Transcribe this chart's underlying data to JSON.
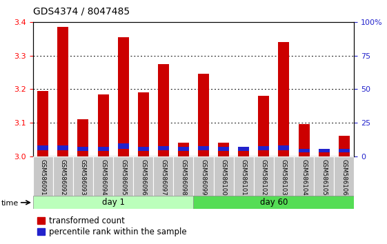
{
  "title": "GDS4374 / 8047485",
  "samples": [
    "GSM586091",
    "GSM586092",
    "GSM586093",
    "GSM586094",
    "GSM586095",
    "GSM586096",
    "GSM586097",
    "GSM586098",
    "GSM586099",
    "GSM586100",
    "GSM586101",
    "GSM586102",
    "GSM586103",
    "GSM586104",
    "GSM586105",
    "GSM586106"
  ],
  "red_values": [
    3.195,
    3.385,
    3.11,
    3.185,
    3.355,
    3.19,
    3.275,
    3.04,
    3.245,
    3.04,
    3.025,
    3.18,
    3.34,
    3.095,
    3.02,
    3.06
  ],
  "blue_bottom": [
    3.018,
    3.018,
    3.016,
    3.016,
    3.022,
    3.016,
    3.018,
    3.016,
    3.018,
    3.016,
    3.016,
    3.018,
    3.018,
    3.012,
    3.012,
    3.012
  ],
  "blue_top": [
    3.032,
    3.032,
    3.028,
    3.028,
    3.038,
    3.028,
    3.03,
    3.028,
    3.03,
    3.028,
    3.028,
    3.03,
    3.032,
    3.022,
    3.022,
    3.022
  ],
  "base": 3.0,
  "ylim": [
    3.0,
    3.4
  ],
  "yticks_left": [
    3.0,
    3.1,
    3.2,
    3.3,
    3.4
  ],
  "yticks_right": [
    0,
    25,
    50,
    75,
    100
  ],
  "day1_count": 8,
  "day60_count": 8,
  "day1_label": "day 1",
  "day60_label": "day 60",
  "day1_color": "#BBFFBB",
  "day60_color": "#55DD55",
  "bar_color_red": "#CC0000",
  "bar_color_blue": "#2222CC",
  "grid_color": "#000000",
  "title_fontsize": 10,
  "tick_fontsize": 8,
  "legend_fontsize": 8.5,
  "bar_width": 0.55,
  "right_yaxis_color": "#2222CC",
  "time_label": "time",
  "legend_red": "transformed count",
  "legend_blue": "percentile rank within the sample"
}
